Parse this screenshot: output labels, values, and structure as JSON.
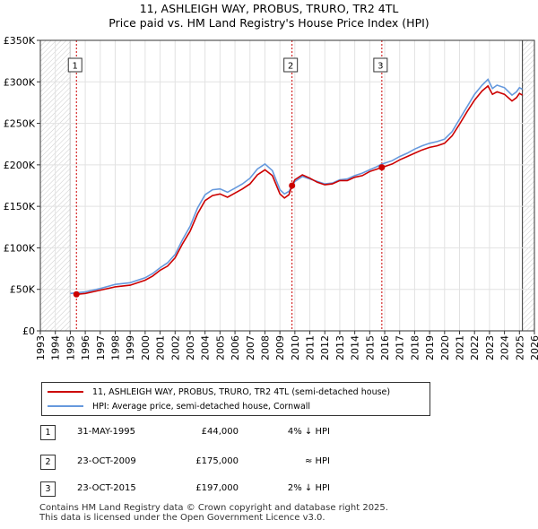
{
  "title_line1": "11, ASHLEIGH WAY, PROBUS, TRURO, TR2 4TL",
  "title_line2": "Price paid vs. HM Land Registry's House Price Index (HPI)",
  "colors": {
    "property": "#cc0000",
    "hpi": "#6699dd",
    "marker": "#cc0000",
    "hatch": "#cccccc"
  },
  "chart_data": {
    "type": "line",
    "xlim": [
      1993,
      2026
    ],
    "ylim": [
      0,
      350000
    ],
    "x_ticks": [
      1993,
      1994,
      1995,
      1996,
      1997,
      1998,
      1999,
      2000,
      2001,
      2002,
      2003,
      2004,
      2005,
      2006,
      2007,
      2008,
      2009,
      2010,
      2011,
      2012,
      2013,
      2014,
      2015,
      2016,
      2017,
      2018,
      2019,
      2020,
      2021,
      2022,
      2023,
      2024,
      2025,
      2026
    ],
    "y_ticks": [
      0,
      50000,
      100000,
      150000,
      200000,
      250000,
      300000,
      350000
    ],
    "y_tick_labels": [
      "£0",
      "£50K",
      "£100K",
      "£150K",
      "£200K",
      "£250K",
      "£300K",
      "£350K"
    ],
    "hatched_ranges": [
      [
        1993,
        1995.0
      ],
      [
        2025.2,
        2026
      ]
    ],
    "series": [
      {
        "name": "HPI: Average price, semi-detached house, Cornwall",
        "x": [
          1995.0,
          1995.5,
          1996,
          1997,
          1998,
          1999,
          2000,
          2000.5,
          2001,
          2001.5,
          2002,
          2002.5,
          2003,
          2003.5,
          2004,
          2004.5,
          2005,
          2005.5,
          2006,
          2006.5,
          2007,
          2007.5,
          2008,
          2008.5,
          2009,
          2009.3,
          2009.6,
          2009.8,
          2010,
          2010.5,
          2011,
          2011.5,
          2012,
          2012.5,
          2013,
          2013.5,
          2014,
          2014.5,
          2015,
          2015.5,
          2015.8,
          2016,
          2016.5,
          2017,
          2017.5,
          2018,
          2018.5,
          2019,
          2019.5,
          2020,
          2020.5,
          2021,
          2021.5,
          2022,
          2022.5,
          2022.9,
          2023.2,
          2023.5,
          2024,
          2024.5,
          2024.8,
          2025.0,
          2025.2
        ],
        "values": [
          45000,
          46000,
          47000,
          51000,
          56000,
          58000,
          64000,
          69000,
          76000,
          82000,
          92000,
          110000,
          126000,
          148000,
          164000,
          170000,
          171000,
          167000,
          172000,
          177000,
          184000,
          195000,
          201000,
          193000,
          170000,
          165000,
          168000,
          174000,
          180000,
          186000,
          183000,
          180000,
          177000,
          178000,
          182000,
          183000,
          187000,
          190000,
          194000,
          198000,
          201000,
          202000,
          205000,
          210000,
          214000,
          219000,
          223000,
          226000,
          228000,
          231000,
          240000,
          255000,
          270000,
          285000,
          296000,
          303000,
          292000,
          296000,
          293000,
          284000,
          288000,
          293000,
          291000
        ]
      },
      {
        "name": "11, ASHLEIGH WAY, PROBUS, TRURO, TR2 4TL (semi-detached house)",
        "x": [
          1995.41,
          1996,
          1997,
          1998,
          1999,
          2000,
          2000.5,
          2001,
          2001.5,
          2002,
          2002.5,
          2003,
          2003.5,
          2004,
          2004.5,
          2005,
          2005.5,
          2006,
          2006.5,
          2007,
          2007.5,
          2008,
          2008.5,
          2009,
          2009.3,
          2009.6,
          2009.81,
          2010,
          2010.5,
          2011,
          2011.5,
          2012,
          2012.5,
          2013,
          2013.5,
          2014,
          2014.5,
          2015,
          2015.5,
          2015.81,
          2016,
          2016.5,
          2017,
          2017.5,
          2018,
          2018.5,
          2019,
          2019.5,
          2020,
          2020.5,
          2021,
          2021.5,
          2022,
          2022.5,
          2022.9,
          2023.2,
          2023.5,
          2024,
          2024.5,
          2024.8,
          2025.0,
          2025.2
        ],
        "values": [
          44000,
          45000,
          49000,
          53000,
          55000,
          61000,
          66000,
          73000,
          78000,
          88000,
          105000,
          120000,
          141000,
          157000,
          163000,
          165000,
          161000,
          166000,
          171000,
          177000,
          188000,
          194000,
          187000,
          165000,
          160000,
          164000,
          175000,
          182000,
          188000,
          184000,
          179000,
          176000,
          177000,
          181000,
          181000,
          185000,
          187000,
          192000,
          195000,
          197000,
          198000,
          201000,
          206000,
          210000,
          214000,
          218000,
          221000,
          223000,
          226000,
          235000,
          249000,
          264000,
          278000,
          289000,
          295000,
          285000,
          288000,
          285000,
          277000,
          281000,
          286000,
          284000
        ]
      }
    ],
    "transactions": [
      {
        "label": "1",
        "x": 1995.41,
        "value": 44000
      },
      {
        "label": "2",
        "x": 2009.81,
        "value": 175000
      },
      {
        "label": "3",
        "x": 2015.81,
        "value": 197000
      }
    ]
  },
  "legend": {
    "property_label": "11, ASHLEIGH WAY, PROBUS, TRURO, TR2 4TL (semi-detached house)",
    "hpi_label": "HPI: Average price, semi-detached house, Cornwall"
  },
  "transactions_table": [
    {
      "label": "1",
      "date": "31-MAY-1995",
      "price": "£44,000",
      "hpi": "4% ↓ HPI"
    },
    {
      "label": "2",
      "date": "23-OCT-2009",
      "price": "£175,000",
      "hpi": "≈ HPI"
    },
    {
      "label": "3",
      "date": "23-OCT-2015",
      "price": "£197,000",
      "hpi": "2% ↓ HPI"
    }
  ],
  "footer": {
    "line1": "Contains HM Land Registry data © Crown copyright and database right 2025.",
    "line2": "This data is licensed under the Open Government Licence v3.0."
  }
}
